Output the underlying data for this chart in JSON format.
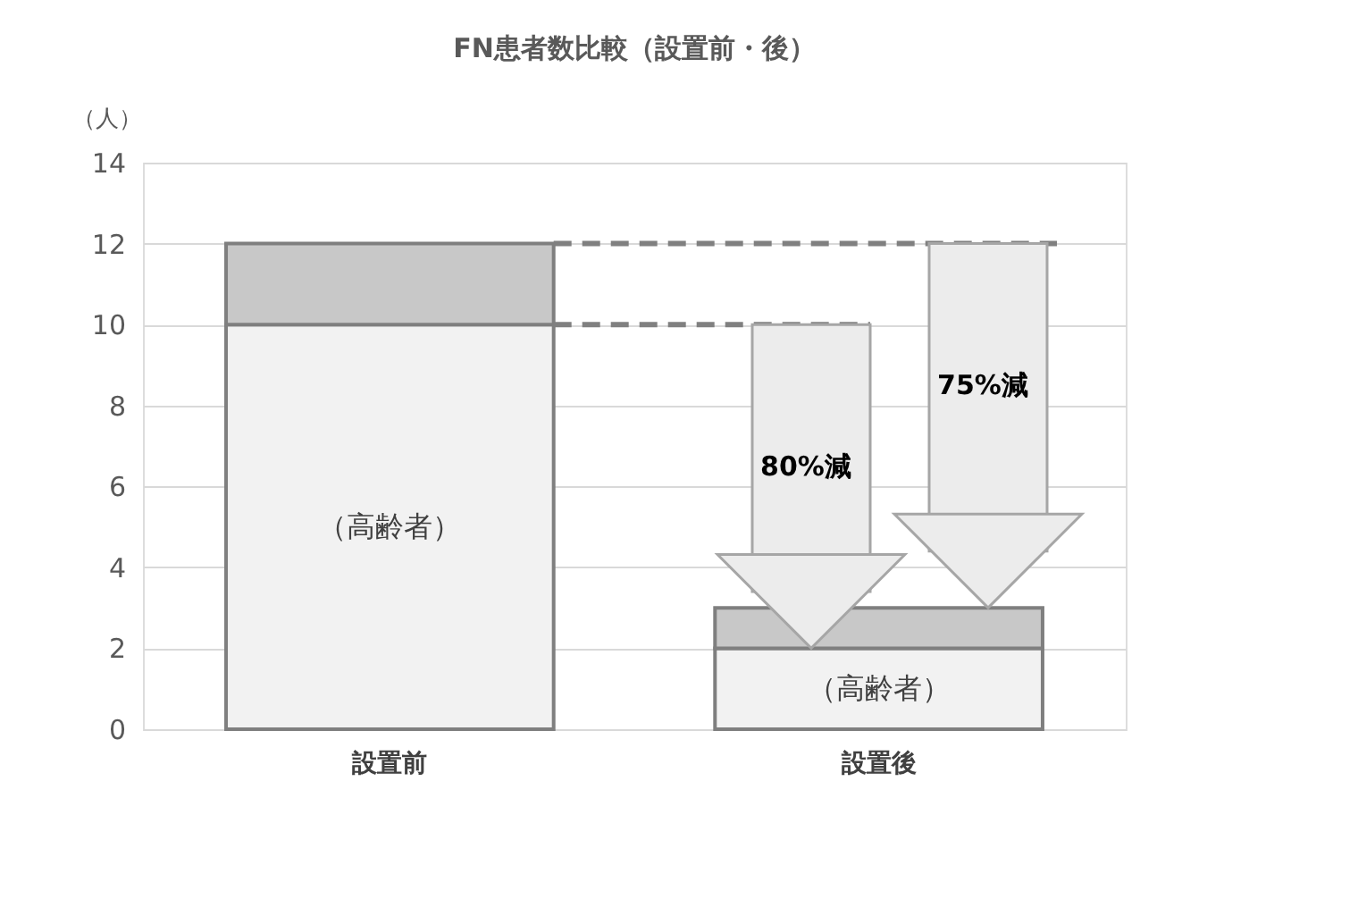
{
  "chart_data": {
    "type": "bar",
    "title": "FN患者数比較（設置前・後）",
    "ylabel": "（人）",
    "categories": [
      "設置前",
      "設置後"
    ],
    "stacked": true,
    "series": [
      {
        "color": "#f2f2f2",
        "values": [
          10,
          2
        ]
      },
      {
        "color": "#c8c8c8",
        "values": [
          2,
          1
        ]
      }
    ],
    "ylim": [
      0,
      14
    ],
    "yticks": [
      0,
      2,
      4,
      6,
      8,
      10,
      12,
      14
    ],
    "grid": "y",
    "ref_lines": [
      {
        "axis": "y",
        "value": 10,
        "line_style": "dashed",
        "color": "#808080"
      },
      {
        "axis": "y",
        "value": 12,
        "line_style": "dashed",
        "color": "#808080"
      }
    ],
    "annotations": [
      "（高齢者）",
      "（高齢者）",
      "80%減",
      "75%減"
    ]
  }
}
